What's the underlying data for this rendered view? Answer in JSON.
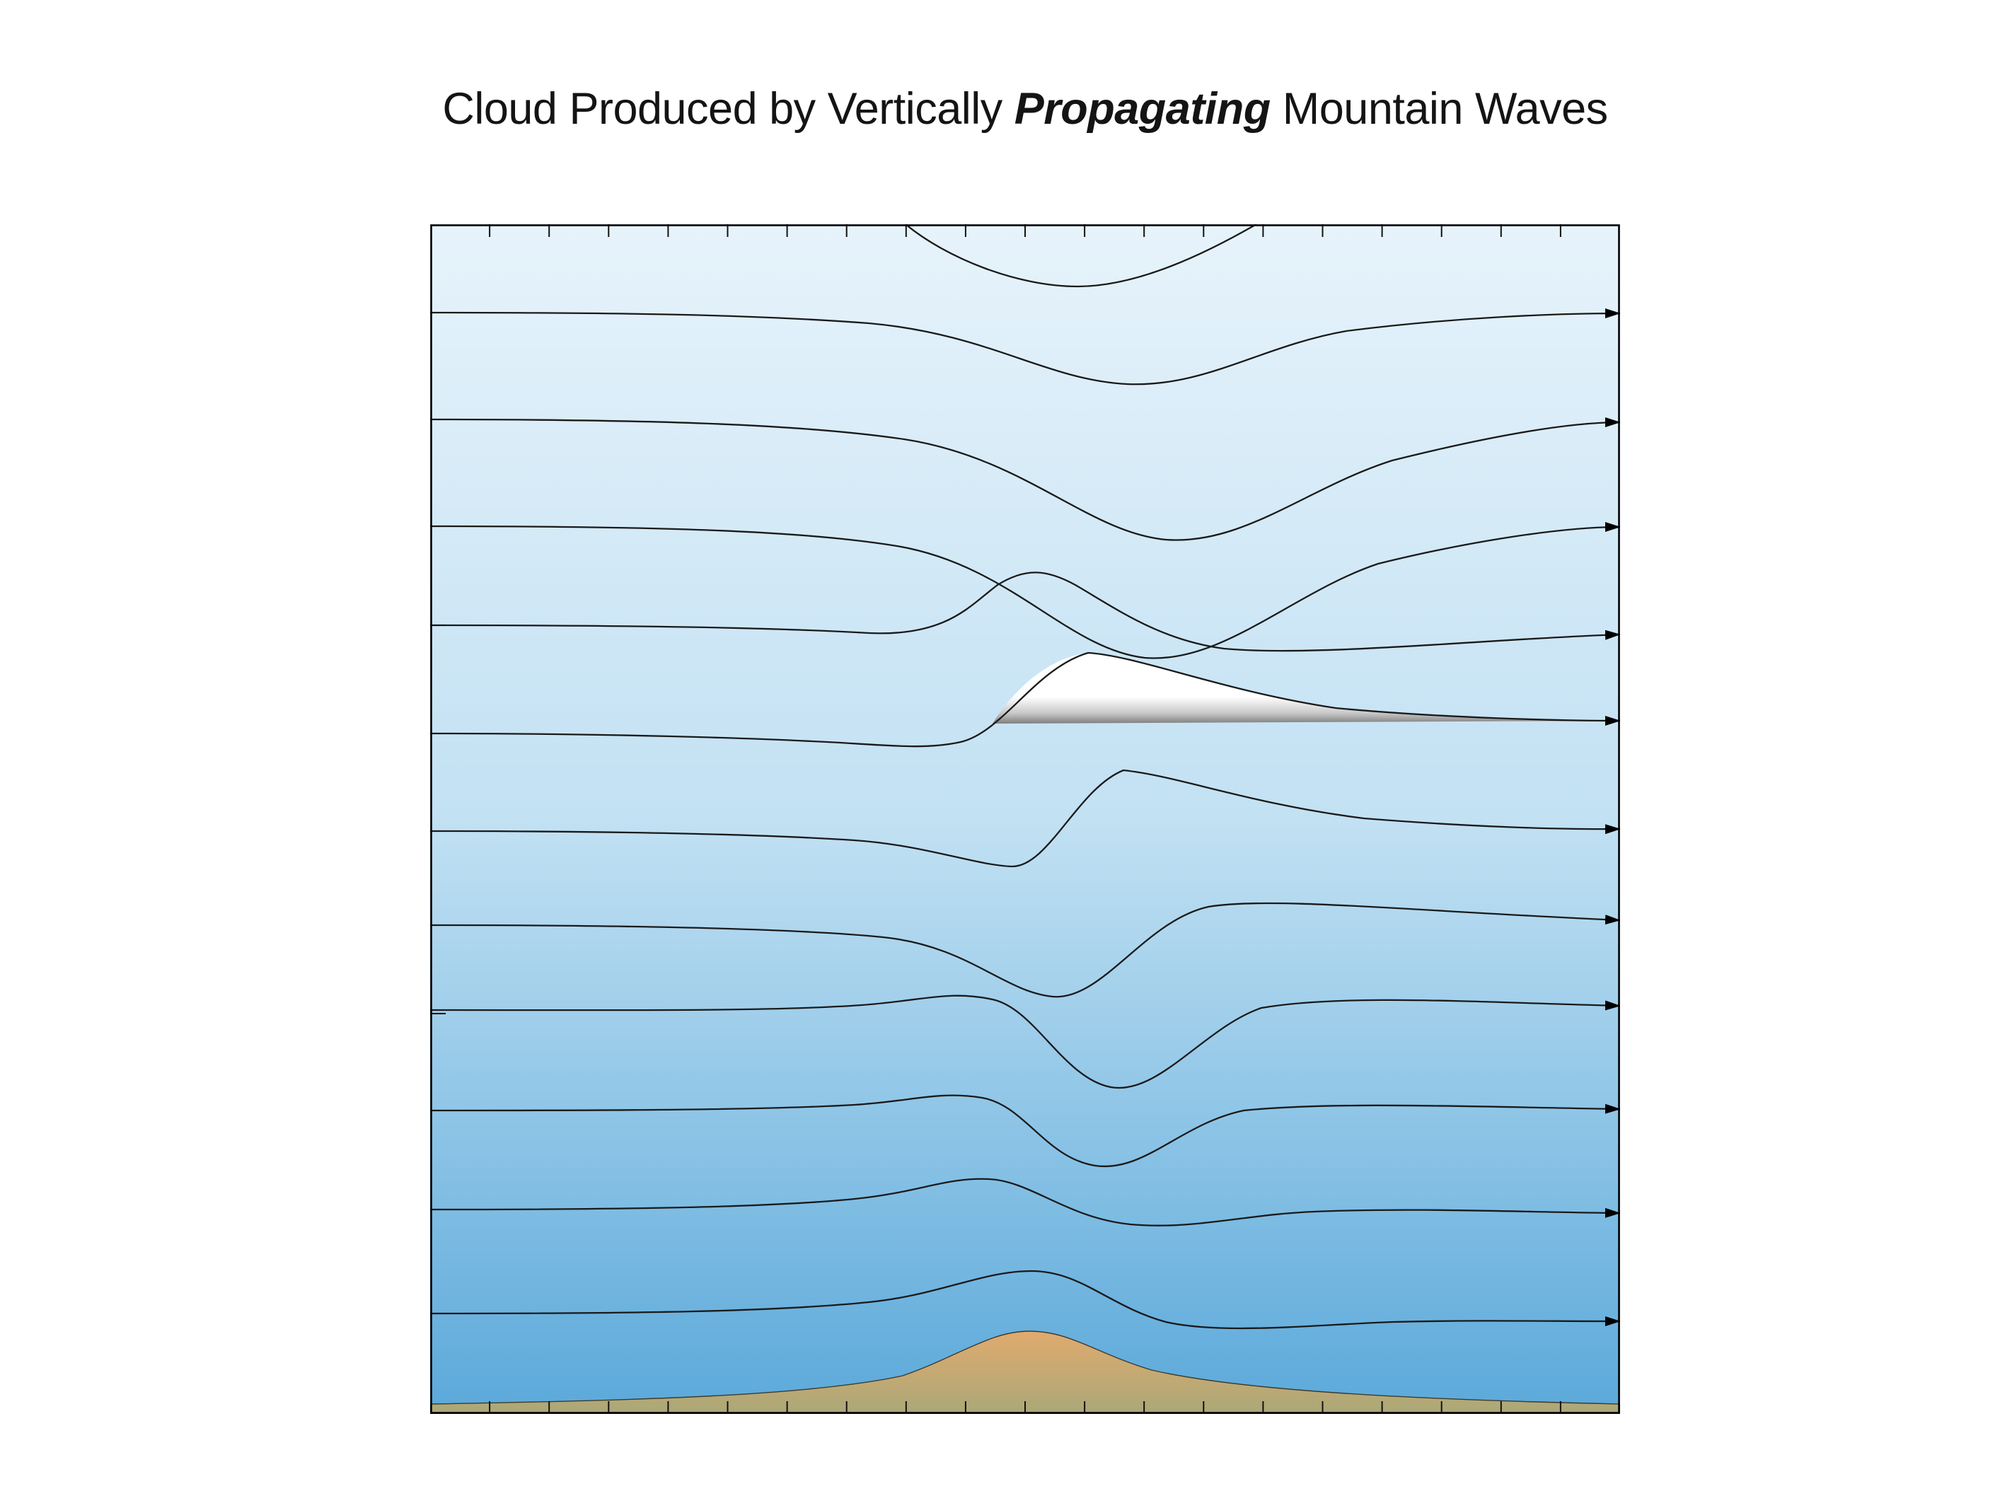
{
  "title": {
    "part1": "Cloud Produced by Vertically ",
    "part2": "Propagating",
    "part3": " Mountain Waves"
  },
  "colors": {
    "sky_top": "#e7f3fb",
    "sky_mid": "#c2e1f3",
    "sky_bottom": "#5ba9da",
    "streamline": "#1a1a1a",
    "border": "#000000",
    "tick": "#111111",
    "mountain_top": "#e0aa6e",
    "mountain_base": "#aaa878",
    "cloud_white": "#ffffff",
    "cloud_shadow": "#7f7f7f"
  }
}
